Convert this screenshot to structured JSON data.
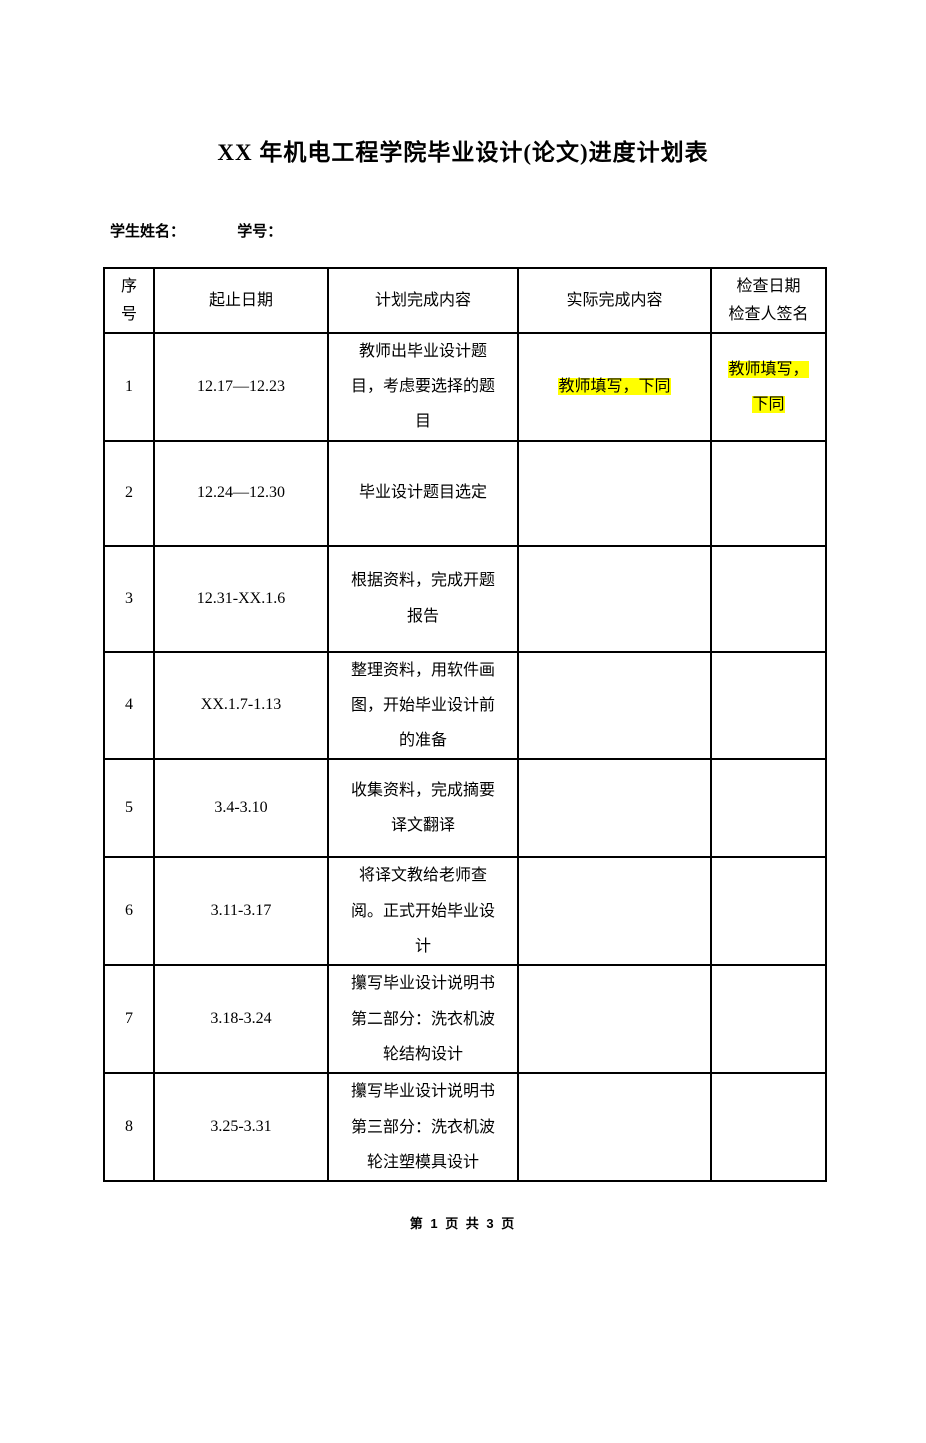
{
  "page": {
    "title": "XX 年机电工程学院毕业设计(论文)进度计划表",
    "student_name_label": "学生姓名：",
    "student_id_label": "学号：",
    "footer": "第 1 页 共 3 页",
    "highlight_color": "#ffff00"
  },
  "table": {
    "headers": [
      "序\n号",
      "起止日期",
      "计划完成内容",
      "实际完成内容",
      "检查日期\n检查人签名"
    ],
    "rows": [
      {
        "no": "1",
        "date": "12.17—12.23",
        "plan": "教师出毕业设计题目，考虑要选择的题目",
        "actual": "教师填写，下同",
        "actual_highlight": true,
        "check": "教师填写，\n下同",
        "check_highlight": true
      },
      {
        "no": "2",
        "date": "12.24—12.30",
        "plan": "毕业设计题目选定",
        "actual": "",
        "actual_highlight": false,
        "check": "",
        "check_highlight": false
      },
      {
        "no": "3",
        "date": "12.31-XX.1.6",
        "plan": "根据资料，完成开题报告",
        "actual": "",
        "actual_highlight": false,
        "check": "",
        "check_highlight": false
      },
      {
        "no": "4",
        "date": "XX.1.7-1.13",
        "plan": "整理资料，用软件画图，开始毕业设计前的准备",
        "actual": "",
        "actual_highlight": false,
        "check": "",
        "check_highlight": false
      },
      {
        "no": "5",
        "date": "3.4-3.10",
        "plan": "收集资料，完成摘要译文翻译",
        "actual": "",
        "actual_highlight": false,
        "check": "",
        "check_highlight": false
      },
      {
        "no": "6",
        "date": "3.11-3.17",
        "plan": "将译文教给老师查阅。正式开始毕业设计",
        "actual": "",
        "actual_highlight": false,
        "check": "",
        "check_highlight": false
      },
      {
        "no": "7",
        "date": "3.18-3.24",
        "plan": "攥写毕业设计说明书第二部分：洗衣机波轮结构设计",
        "actual": "",
        "actual_highlight": false,
        "check": "",
        "check_highlight": false
      },
      {
        "no": "8",
        "date": "3.25-3.31",
        "plan": "攥写毕业设计说明书第三部分：洗衣机波轮注塑模具设计",
        "actual": "",
        "actual_highlight": false,
        "check": "",
        "check_highlight": false
      }
    ]
  }
}
